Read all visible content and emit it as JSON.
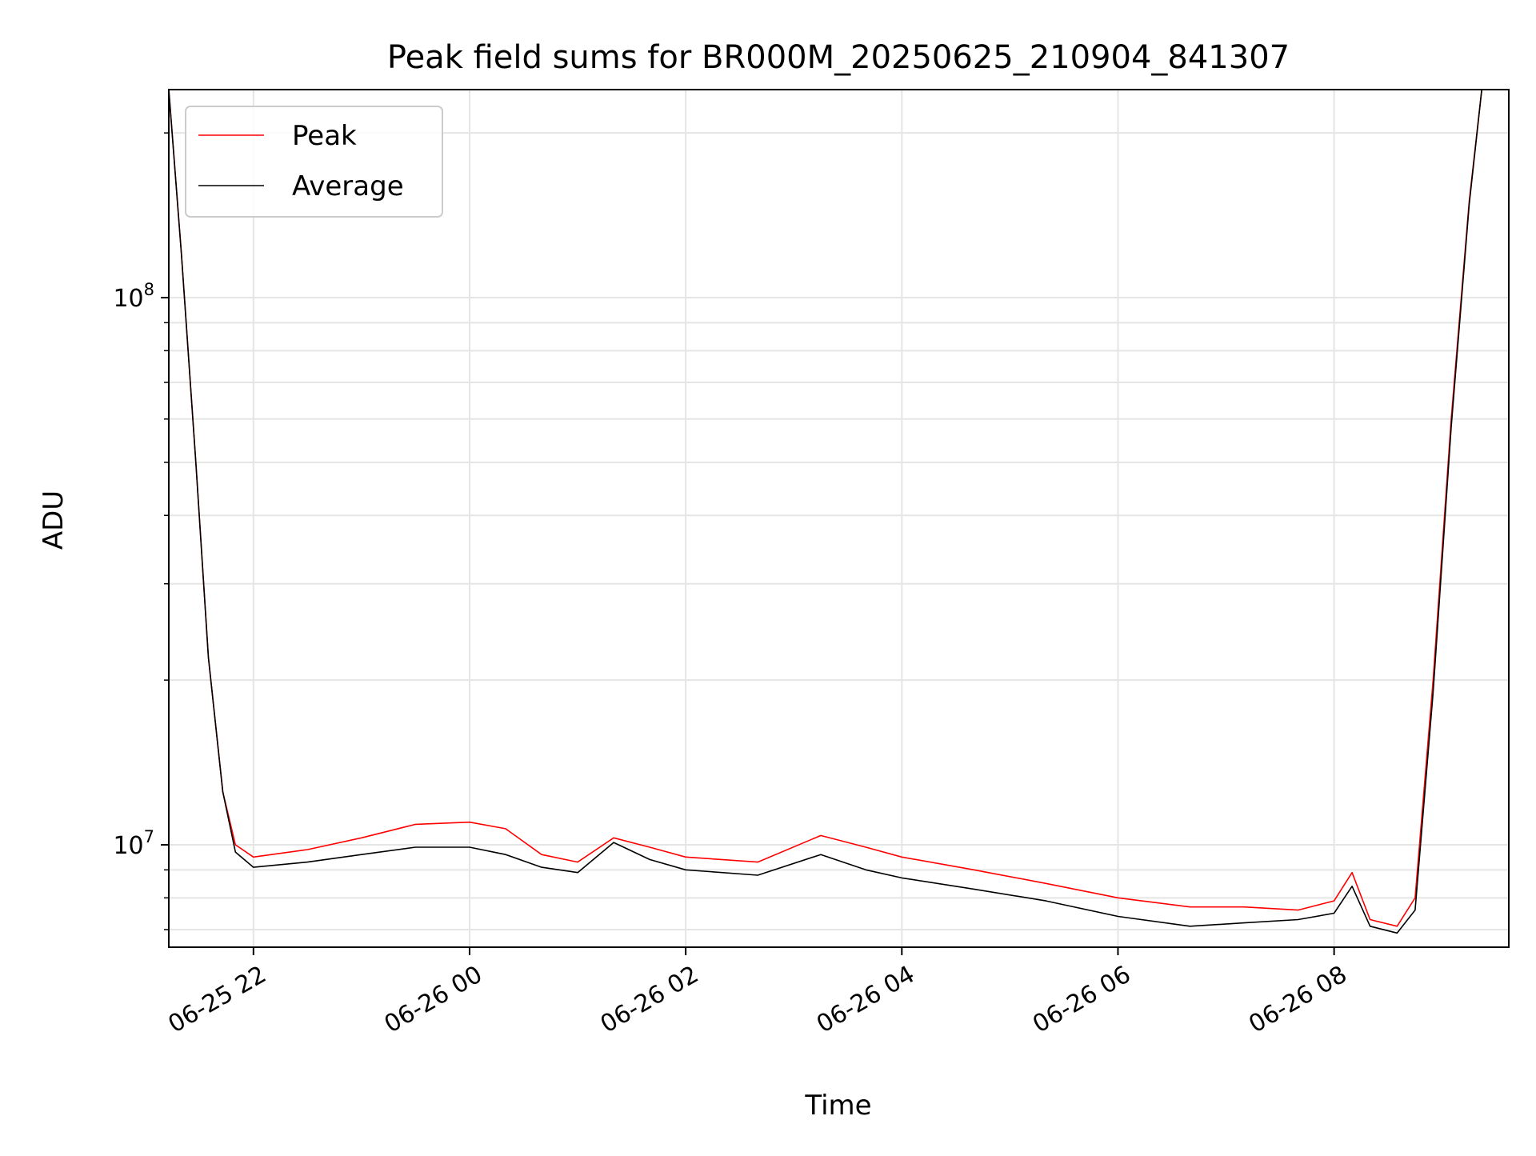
{
  "chart_data": {
    "type": "line",
    "title": "Peak field sums for BR000M_20250625_210904_841307",
    "xlabel": "Time",
    "ylabel": "ADU",
    "yscale": "log",
    "ylim": [
      6500000,
      240000000
    ],
    "xlim": [
      "2025-06-25 21:13",
      "2025-06-26 09:37"
    ],
    "x_ticks": [
      {
        "at": "2025-06-25 22:00",
        "label": "06-25 22"
      },
      {
        "at": "2025-06-26 00:00",
        "label": "06-26 00"
      },
      {
        "at": "2025-06-26 02:00",
        "label": "06-26 02"
      },
      {
        "at": "2025-06-26 04:00",
        "label": "06-26 04"
      },
      {
        "at": "2025-06-26 06:00",
        "label": "06-26 06"
      },
      {
        "at": "2025-06-26 08:00",
        "label": "06-26 08"
      }
    ],
    "y_ticks": [
      {
        "value": 10000000,
        "base": "10",
        "exp": "7"
      },
      {
        "value": 100000000,
        "base": "10",
        "exp": "8"
      }
    ],
    "grid": true,
    "legend_position": "upper-left",
    "series": [
      {
        "name": "Peak",
        "color": "#ff0000",
        "points": [
          [
            "2025-06-25 21:13",
            240000000
          ],
          [
            "2025-06-25 21:20",
            120000000
          ],
          [
            "2025-06-25 21:28",
            50000000
          ],
          [
            "2025-06-25 21:35",
            22000000
          ],
          [
            "2025-06-25 21:43",
            12500000
          ],
          [
            "2025-06-25 21:50",
            10000000
          ],
          [
            "2025-06-25 22:00",
            9500000
          ],
          [
            "2025-06-25 22:30",
            9800000
          ],
          [
            "2025-06-25 23:00",
            10300000
          ],
          [
            "2025-06-25 23:30",
            10900000
          ],
          [
            "2025-06-26 00:00",
            11000000
          ],
          [
            "2025-06-26 00:20",
            10700000
          ],
          [
            "2025-06-26 00:40",
            9600000
          ],
          [
            "2025-06-26 01:00",
            9300000
          ],
          [
            "2025-06-26 01:20",
            10300000
          ],
          [
            "2025-06-26 01:40",
            9900000
          ],
          [
            "2025-06-26 02:00",
            9500000
          ],
          [
            "2025-06-26 02:40",
            9300000
          ],
          [
            "2025-06-26 03:15",
            10400000
          ],
          [
            "2025-06-26 03:40",
            9900000
          ],
          [
            "2025-06-26 04:00",
            9500000
          ],
          [
            "2025-06-26 04:40",
            9000000
          ],
          [
            "2025-06-26 05:20",
            8500000
          ],
          [
            "2025-06-26 06:00",
            8000000
          ],
          [
            "2025-06-26 06:40",
            7700000
          ],
          [
            "2025-06-26 07:10",
            7700000
          ],
          [
            "2025-06-26 07:40",
            7600000
          ],
          [
            "2025-06-26 08:00",
            7900000
          ],
          [
            "2025-06-26 08:10",
            8900000
          ],
          [
            "2025-06-26 08:20",
            7300000
          ],
          [
            "2025-06-26 08:35",
            7100000
          ],
          [
            "2025-06-26 08:45",
            8000000
          ],
          [
            "2025-06-26 08:55",
            20000000
          ],
          [
            "2025-06-26 09:05",
            60000000
          ],
          [
            "2025-06-26 09:15",
            150000000
          ],
          [
            "2025-06-26 09:22",
            240000000
          ]
        ]
      },
      {
        "name": "Average",
        "color": "#000000",
        "points": [
          [
            "2025-06-25 21:13",
            240000000
          ],
          [
            "2025-06-25 21:20",
            120000000
          ],
          [
            "2025-06-25 21:28",
            50000000
          ],
          [
            "2025-06-25 21:35",
            22000000
          ],
          [
            "2025-06-25 21:43",
            12500000
          ],
          [
            "2025-06-25 21:50",
            9700000
          ],
          [
            "2025-06-25 22:00",
            9100000
          ],
          [
            "2025-06-25 22:30",
            9300000
          ],
          [
            "2025-06-25 23:00",
            9600000
          ],
          [
            "2025-06-25 23:30",
            9900000
          ],
          [
            "2025-06-26 00:00",
            9900000
          ],
          [
            "2025-06-26 00:20",
            9600000
          ],
          [
            "2025-06-26 00:40",
            9100000
          ],
          [
            "2025-06-26 01:00",
            8900000
          ],
          [
            "2025-06-26 01:20",
            10100000
          ],
          [
            "2025-06-26 01:40",
            9400000
          ],
          [
            "2025-06-26 02:00",
            9000000
          ],
          [
            "2025-06-26 02:40",
            8800000
          ],
          [
            "2025-06-26 03:15",
            9600000
          ],
          [
            "2025-06-26 03:40",
            9000000
          ],
          [
            "2025-06-26 04:00",
            8700000
          ],
          [
            "2025-06-26 04:40",
            8300000
          ],
          [
            "2025-06-26 05:20",
            7900000
          ],
          [
            "2025-06-26 06:00",
            7400000
          ],
          [
            "2025-06-26 06:40",
            7100000
          ],
          [
            "2025-06-26 07:10",
            7200000
          ],
          [
            "2025-06-26 07:40",
            7300000
          ],
          [
            "2025-06-26 08:00",
            7500000
          ],
          [
            "2025-06-26 08:10",
            8400000
          ],
          [
            "2025-06-26 08:20",
            7100000
          ],
          [
            "2025-06-26 08:35",
            6900000
          ],
          [
            "2025-06-26 08:45",
            7600000
          ],
          [
            "2025-06-26 08:55",
            19000000
          ],
          [
            "2025-06-26 09:05",
            58000000
          ],
          [
            "2025-06-26 09:15",
            148000000
          ],
          [
            "2025-06-26 09:22",
            240000000
          ]
        ]
      }
    ]
  }
}
